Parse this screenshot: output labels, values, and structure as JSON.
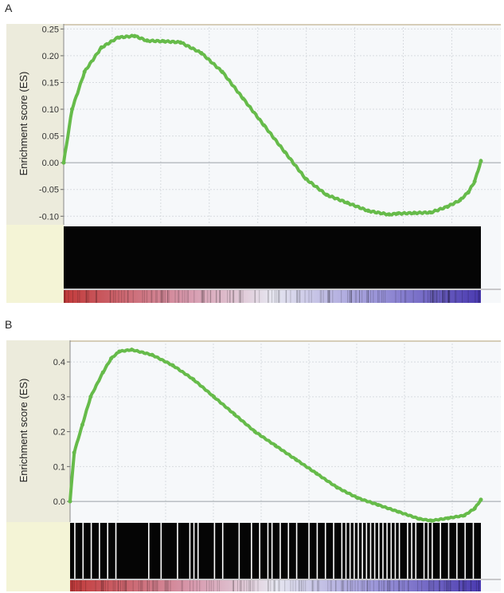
{
  "panels": [
    {
      "letter": "A"
    },
    {
      "letter": "B"
    }
  ],
  "colors": {
    "curve": "#66bb4a",
    "plot_bg": "#f6f8fa",
    "side_bg": "#ecebdc",
    "side_bg_lower": "#f4f4d6",
    "grid": "#d8dbe0",
    "zero_line": "#9aa0a6",
    "barcode_bg": "#050505",
    "hit": "#ffffff",
    "gradient_high": "#c23a3a",
    "gradient_mid": "#e6e6f0",
    "gradient_low": "#4a3ab0"
  },
  "chart_data": [
    {
      "type": "line",
      "title": "",
      "xlabel": "",
      "ylabel": "Enrichment score (ES)",
      "ylim": [
        -0.11,
        0.255
      ],
      "yticks": [
        "0.25",
        "0.20",
        "0.15",
        "0.10",
        "0.05",
        "0.00",
        "-0.05",
        "-0.10"
      ],
      "ytick_values": [
        0.25,
        0.2,
        0.15,
        0.1,
        0.05,
        0.0,
        -0.05,
        -0.1
      ],
      "grid": true,
      "series": [
        {
          "x": [
            0,
            0.02,
            0.05,
            0.09,
            0.13,
            0.17,
            0.2,
            0.24,
            0.28,
            0.33,
            0.38,
            0.43,
            0.48,
            0.53,
            0.58,
            0.63,
            0.68,
            0.73,
            0.78,
            0.8,
            0.84,
            0.88,
            0.92,
            0.95,
            0.97,
            0.985,
            1.0
          ],
          "y": [
            0.0,
            0.1,
            0.17,
            0.215,
            0.234,
            0.237,
            0.228,
            0.227,
            0.225,
            0.205,
            0.17,
            0.12,
            0.07,
            0.02,
            -0.03,
            -0.06,
            -0.075,
            -0.09,
            -0.097,
            -0.095,
            -0.094,
            -0.093,
            -0.082,
            -0.07,
            -0.055,
            -0.035,
            0.003
          ]
        }
      ],
      "barcode_density": "dense"
    },
    {
      "type": "line",
      "title": "",
      "xlabel": "",
      "ylabel": "Enrichment score (ES)",
      "ylim": [
        -0.05,
        0.455
      ],
      "yticks": [
        "0.4",
        "0.3",
        "0.2",
        "0.1",
        "0.0"
      ],
      "ytick_values": [
        0.4,
        0.3,
        0.2,
        0.1,
        0.0
      ],
      "grid": true,
      "series": [
        {
          "x": [
            0,
            0.01,
            0.03,
            0.05,
            0.08,
            0.1,
            0.12,
            0.15,
            0.2,
            0.25,
            0.3,
            0.35,
            0.4,
            0.45,
            0.5,
            0.55,
            0.6,
            0.65,
            0.7,
            0.75,
            0.8,
            0.85,
            0.88,
            0.92,
            0.96,
            0.985,
            1.0
          ],
          "y": [
            0.0,
            0.14,
            0.22,
            0.3,
            0.37,
            0.41,
            0.43,
            0.435,
            0.42,
            0.39,
            0.35,
            0.3,
            0.25,
            0.2,
            0.16,
            0.12,
            0.08,
            0.04,
            0.01,
            -0.01,
            -0.03,
            -0.05,
            -0.055,
            -0.048,
            -0.04,
            -0.02,
            0.005
          ]
        }
      ],
      "barcode_density": "sparse"
    }
  ]
}
